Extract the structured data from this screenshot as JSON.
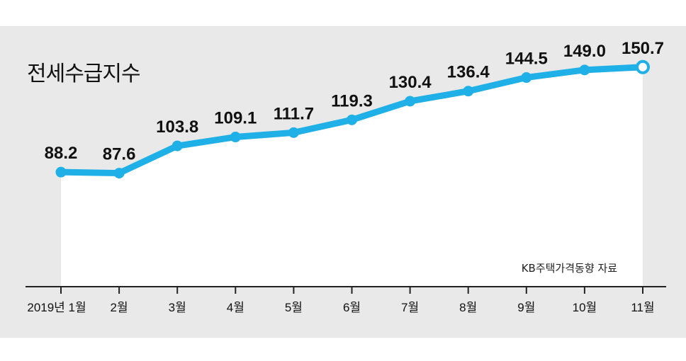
{
  "chart_data": {
    "type": "area",
    "title": "전세수급지수",
    "source": "KB주택가격동향 자료",
    "categories": [
      "2019년 1월",
      "2월",
      "3월",
      "4월",
      "5월",
      "6월",
      "7월",
      "8월",
      "9월",
      "10월",
      "11월"
    ],
    "values": [
      88.2,
      87.6,
      103.8,
      109.1,
      111.7,
      119.3,
      130.4,
      136.4,
      144.5,
      149.0,
      150.7
    ],
    "value_labels": [
      "88.2",
      "87.6",
      "103.8",
      "109.1",
      "111.7",
      "119.3",
      "130.4",
      "136.4",
      "144.5",
      "149.0",
      "150.7"
    ],
    "ylim": [
      20,
      170
    ],
    "grid": false,
    "colors": {
      "background": "#e9e9e9",
      "area_fill": "#ffffff",
      "line": "#1eb0e6",
      "text": "#111111"
    }
  }
}
